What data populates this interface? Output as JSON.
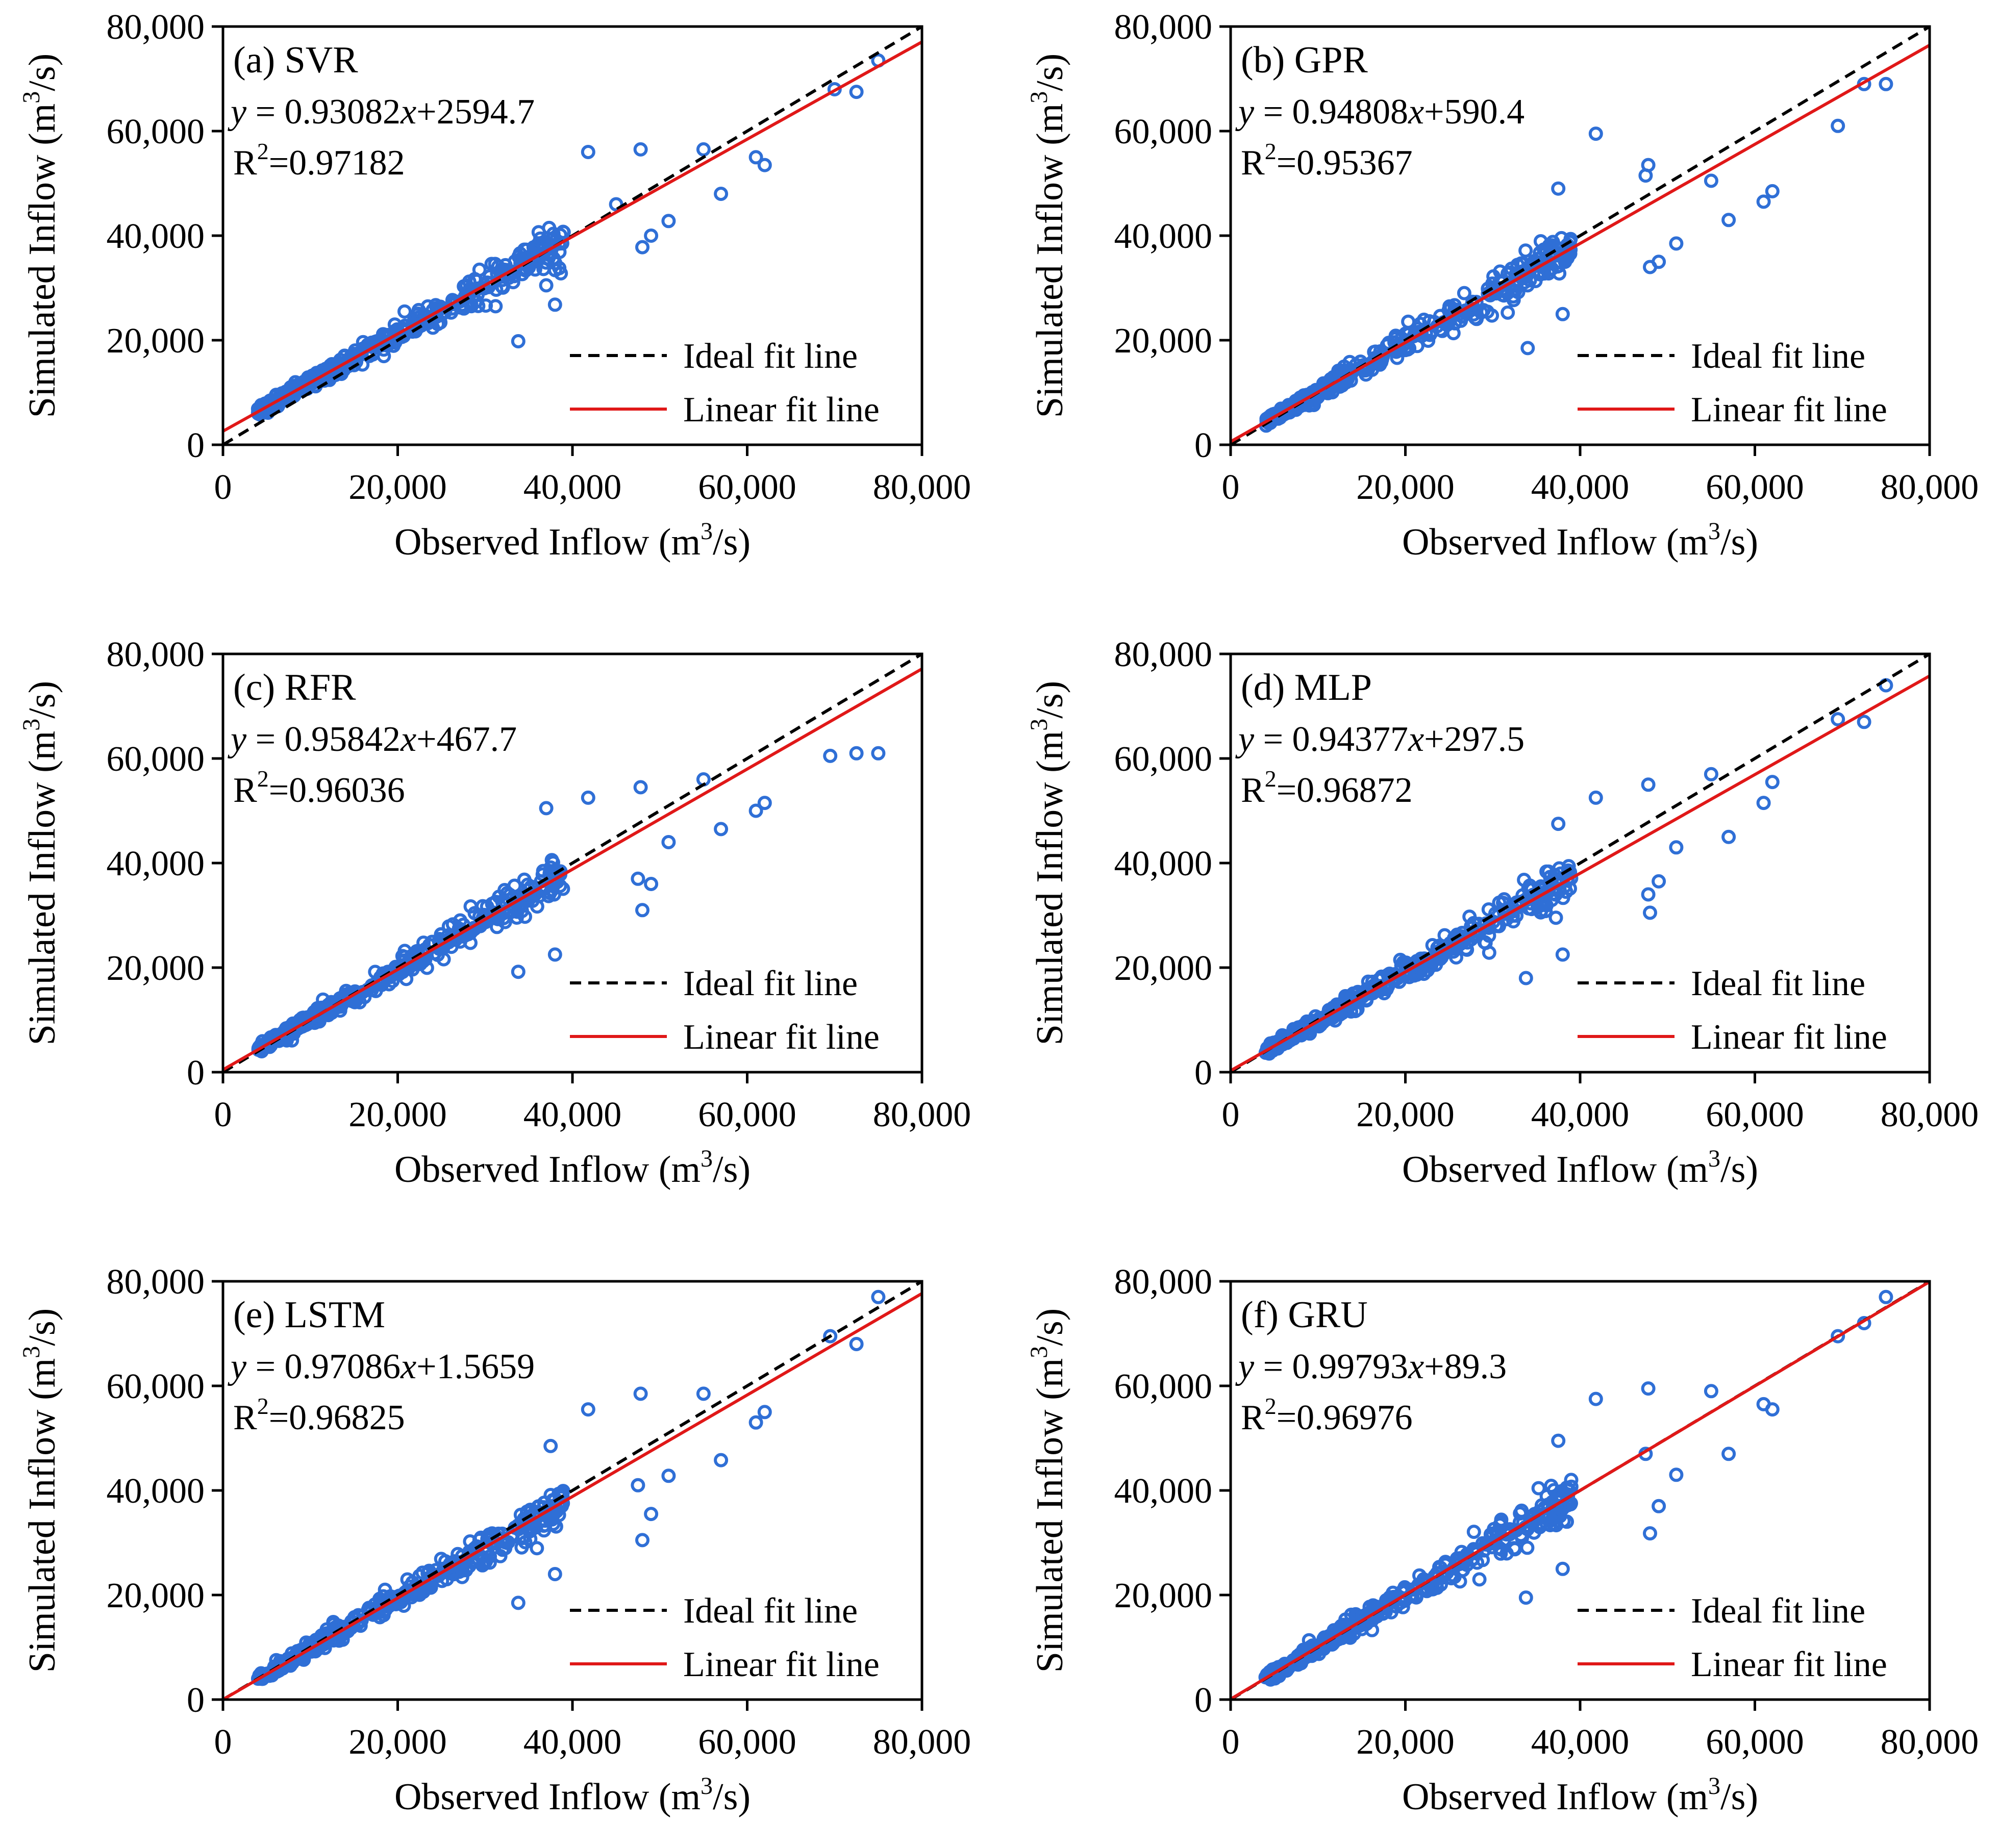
{
  "colors": {
    "scatter": "#2f6fd6",
    "ideal": "#000000",
    "fit": "#e01818",
    "axis": "#000000"
  },
  "chart_data": [
    {
      "type": "scatter",
      "panel_label": "(a) SVR",
      "equation": {
        "y": "y",
        "rest_a": " = 0.93082",
        "x": "x",
        "rest_b": "+2594.7"
      },
      "r2": {
        "r": "R",
        "sup": "2",
        "val": "=0.97182"
      },
      "slope": 0.93082,
      "intercept": 2594.7,
      "xlabel": {
        "main": "Observed Inflow (m",
        "sup": "3",
        "tail": "/s)"
      },
      "ylabel": {
        "main": "Simulated Inflow (m",
        "sup": "3",
        "tail": "/s)"
      },
      "xlim": [
        0,
        80000
      ],
      "ylim": [
        0,
        80000
      ],
      "xticks": [
        "0",
        "20,000",
        "40,000",
        "60,000",
        "80,000"
      ],
      "yticks": [
        "0",
        "20,000",
        "40,000",
        "60,000",
        "80,000"
      ],
      "legend": [
        "Ideal fit line",
        "Linear fit line"
      ],
      "extra_points": [
        [
          33800,
          19800
        ],
        [
          41800,
          56000
        ],
        [
          47800,
          56500
        ],
        [
          48000,
          37800
        ],
        [
          49000,
          40000
        ],
        [
          51000,
          42800
        ],
        [
          57000,
          48000
        ],
        [
          61000,
          55000
        ],
        [
          62000,
          53500
        ],
        [
          55000,
          56500
        ],
        [
          70000,
          68000
        ],
        [
          72500,
          67500
        ],
        [
          75000,
          73500
        ],
        [
          38000,
          26800
        ],
        [
          37000,
          30500
        ],
        [
          45000,
          46000
        ]
      ]
    },
    {
      "type": "scatter",
      "panel_label": "(b) GPR",
      "equation": {
        "y": "y",
        "rest_a": " = 0.94808",
        "x": "x",
        "rest_b": "+590.4"
      },
      "r2": {
        "r": "R",
        "sup": "2",
        "val": "=0.95367"
      },
      "slope": 0.94808,
      "intercept": 590.4,
      "xlabel": {
        "main": "Observed Inflow (m",
        "sup": "3",
        "tail": "/s)"
      },
      "ylabel": {
        "main": "Simulated Inflow (m",
        "sup": "3",
        "tail": "/s)"
      },
      "xlim": [
        0,
        80000
      ],
      "ylim": [
        0,
        80000
      ],
      "xticks": [
        "0",
        "20,000",
        "40,000",
        "60,000",
        "80,000"
      ],
      "yticks": [
        "0",
        "20,000",
        "40,000",
        "60,000",
        "80,000"
      ],
      "legend": [
        "Ideal fit line",
        "Linear fit line"
      ],
      "extra_points": [
        [
          34000,
          18500
        ],
        [
          41800,
          59500
        ],
        [
          47800,
          53500
        ],
        [
          48000,
          34000
        ],
        [
          49000,
          35000
        ],
        [
          51000,
          38500
        ],
        [
          57000,
          43000
        ],
        [
          61000,
          46500
        ],
        [
          62000,
          48500
        ],
        [
          55000,
          50500
        ],
        [
          69500,
          61000
        ],
        [
          72500,
          69000
        ],
        [
          75000,
          69000
        ],
        [
          38000,
          25000
        ],
        [
          37500,
          49000
        ],
        [
          47500,
          51500
        ]
      ]
    },
    {
      "type": "scatter",
      "panel_label": "(c) RFR",
      "equation": {
        "y": "y",
        "rest_a": " = 0.95842",
        "x": "x",
        "rest_b": "+467.7"
      },
      "r2": {
        "r": "R",
        "sup": "2",
        "val": "=0.96036"
      },
      "slope": 0.95842,
      "intercept": 467.7,
      "xlabel": {
        "main": "Observed Inflow (m",
        "sup": "3",
        "tail": "/s)"
      },
      "ylabel": {
        "main": "Simulated Inflow (m",
        "sup": "3",
        "tail": "/s)"
      },
      "xlim": [
        0,
        80000
      ],
      "ylim": [
        0,
        80000
      ],
      "xticks": [
        "0",
        "20,000",
        "40,000",
        "60,000",
        "80,000"
      ],
      "yticks": [
        "0",
        "20,000",
        "40,000",
        "60,000",
        "80,000"
      ],
      "legend": [
        "Ideal fit line",
        "Linear fit line"
      ],
      "extra_points": [
        [
          33800,
          19200
        ],
        [
          41800,
          52500
        ],
        [
          47800,
          54500
        ],
        [
          48000,
          31000
        ],
        [
          49000,
          36000
        ],
        [
          51000,
          44000
        ],
        [
          57000,
          46500
        ],
        [
          61000,
          50000
        ],
        [
          62000,
          51500
        ],
        [
          55000,
          56000
        ],
        [
          69500,
          60500
        ],
        [
          72500,
          61000
        ],
        [
          75000,
          61000
        ],
        [
          38000,
          22500
        ],
        [
          37000,
          50500
        ],
        [
          47500,
          37000
        ]
      ]
    },
    {
      "type": "scatter",
      "panel_label": "(d) MLP",
      "equation": {
        "y": "y",
        "rest_a": " = 0.94377",
        "x": "x",
        "rest_b": "+297.5"
      },
      "r2": {
        "r": "R",
        "sup": "2",
        "val": "=0.96872"
      },
      "slope": 0.94377,
      "intercept": 297.5,
      "xlabel": {
        "main": "Observed Inflow (m",
        "sup": "3",
        "tail": "/s)"
      },
      "ylabel": {
        "main": "Simulated Inflow (m",
        "sup": "3",
        "tail": "/s)"
      },
      "xlim": [
        0,
        80000
      ],
      "ylim": [
        0,
        80000
      ],
      "xticks": [
        "0",
        "20,000",
        "40,000",
        "60,000",
        "80,000"
      ],
      "yticks": [
        "0",
        "20,000",
        "40,000",
        "60,000",
        "80,000"
      ],
      "legend": [
        "Ideal fit line",
        "Linear fit line"
      ],
      "extra_points": [
        [
          33800,
          18000
        ],
        [
          41800,
          52500
        ],
        [
          47800,
          55000
        ],
        [
          48000,
          30500
        ],
        [
          49000,
          36500
        ],
        [
          51000,
          43000
        ],
        [
          57000,
          45000
        ],
        [
          61000,
          51500
        ],
        [
          62000,
          55500
        ],
        [
          55000,
          57000
        ],
        [
          69500,
          67500
        ],
        [
          72500,
          67000
        ],
        [
          75000,
          74000
        ],
        [
          38000,
          22500
        ],
        [
          37500,
          47500
        ],
        [
          47800,
          34000
        ]
      ]
    },
    {
      "type": "scatter",
      "panel_label": "(e) LSTM",
      "equation": {
        "y": "y",
        "rest_a": " = 0.97086",
        "x": "x",
        "rest_b": "+1.5659"
      },
      "r2": {
        "r": "R",
        "sup": "2",
        "val": "=0.96825"
      },
      "slope": 0.97086,
      "intercept": 1.5659,
      "xlabel": {
        "main": "Observed Inflow (m",
        "sup": "3",
        "tail": "/s)"
      },
      "ylabel": {
        "main": "Simulated Inflow (m",
        "sup": "3",
        "tail": "/s)"
      },
      "xlim": [
        0,
        80000
      ],
      "ylim": [
        0,
        80000
      ],
      "xticks": [
        "0",
        "20,000",
        "40,000",
        "60,000",
        "80,000"
      ],
      "yticks": [
        "0",
        "20,000",
        "40,000",
        "60,000",
        "80,000"
      ],
      "legend": [
        "Ideal fit line",
        "Linear fit line"
      ],
      "extra_points": [
        [
          33800,
          18500
        ],
        [
          41800,
          55500
        ],
        [
          47800,
          58500
        ],
        [
          48000,
          30500
        ],
        [
          49000,
          35500
        ],
        [
          51000,
          42800
        ],
        [
          57000,
          45800
        ],
        [
          61000,
          53000
        ],
        [
          62000,
          55000
        ],
        [
          55000,
          58500
        ],
        [
          69500,
          69500
        ],
        [
          72500,
          68000
        ],
        [
          75000,
          77000
        ],
        [
          38000,
          24000
        ],
        [
          37500,
          48500
        ],
        [
          47500,
          41000
        ]
      ]
    },
    {
      "type": "scatter",
      "panel_label": "(f) GRU",
      "equation": {
        "y": "y",
        "rest_a": " = 0.99793",
        "x": "x",
        "rest_b": "+89.3"
      },
      "r2": {
        "r": "R",
        "sup": "2",
        "val": "=0.96976"
      },
      "slope": 0.99793,
      "intercept": 89.3,
      "xlabel": {
        "main": "Observed Inflow (m",
        "sup": "3",
        "tail": "/s)"
      },
      "ylabel": {
        "main": "Simulated Inflow (m",
        "sup": "3",
        "tail": "/s)"
      },
      "xlim": [
        0,
        80000
      ],
      "ylim": [
        0,
        80000
      ],
      "xticks": [
        "0",
        "20,000",
        "40,000",
        "60,000",
        "80,000"
      ],
      "yticks": [
        "0",
        "20,000",
        "40,000",
        "60,000",
        "80,000"
      ],
      "legend": [
        "Ideal fit line",
        "Linear fit line"
      ],
      "extra_points": [
        [
          33800,
          19500
        ],
        [
          41800,
          57500
        ],
        [
          47800,
          59500
        ],
        [
          48000,
          31800
        ],
        [
          49000,
          37000
        ],
        [
          51000,
          43000
        ],
        [
          57000,
          47000
        ],
        [
          61000,
          56500
        ],
        [
          62000,
          55500
        ],
        [
          55000,
          59000
        ],
        [
          69500,
          69500
        ],
        [
          72500,
          72000
        ],
        [
          75000,
          77000
        ],
        [
          38000,
          25000
        ],
        [
          37500,
          49500
        ],
        [
          47500,
          47000
        ]
      ]
    }
  ]
}
